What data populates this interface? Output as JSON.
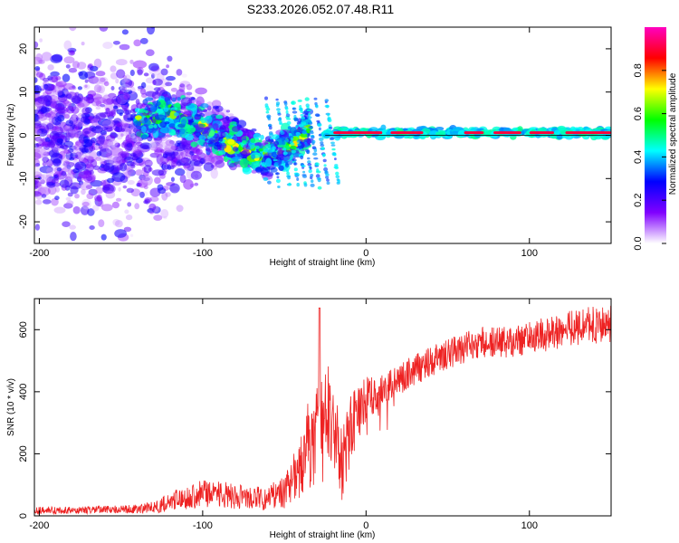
{
  "title": "S233.2026.052.07.48.R11",
  "chart_data": [
    {
      "type": "heatmap",
      "name": "spectrogram",
      "xlabel": "Height of straight line (km)",
      "ylabel": "Frequency (Hz)",
      "xlim": [
        -203,
        150
      ],
      "ylim": [
        -25,
        25
      ],
      "xticks": [
        -200,
        -100,
        0,
        100
      ],
      "yticks": [
        -20,
        -10,
        0,
        10,
        20
      ],
      "colorbar": {
        "label": "Normalized spectral amplitude",
        "range": [
          0,
          1
        ],
        "ticks": [
          "0.0",
          "0.2",
          "0.4",
          "0.6",
          "0.8"
        ],
        "tick_values": [
          0.0,
          0.2,
          0.4,
          0.6,
          0.8
        ],
        "colors": [
          "#ffffff",
          "#8000ff",
          "#0000ff",
          "#00ffff",
          "#00ff00",
          "#ffff00",
          "#ff0000",
          "#ff00c0"
        ]
      },
      "features": [
        {
          "name": "diffuse-noise",
          "x_range": [
            -203,
            -130
          ],
          "freq_range": [
            -25,
            25
          ],
          "level": 0.2
        },
        {
          "name": "descending-trace",
          "x": [
            -140,
            -120,
            -100,
            -80,
            -60,
            -45,
            -35
          ],
          "freq": [
            3,
            5,
            2,
            -3,
            -5,
            -2,
            2
          ],
          "level": 0.35
        },
        {
          "name": "carrier-line",
          "x_range": [
            -25,
            150
          ],
          "freq": 0.6,
          "level": 0.9
        }
      ]
    },
    {
      "type": "line",
      "name": "snr",
      "xlabel": "Height of straight line (km)",
      "ylabel": "SNR (10 * v/v)",
      "xlim": [
        -203,
        150
      ],
      "ylim": [
        0,
        700
      ],
      "xticks": [
        -200,
        -100,
        0,
        100
      ],
      "yticks": [
        0,
        200,
        400,
        600
      ],
      "color": "#ee2222",
      "series": [
        {
          "name": "SNR",
          "x": [
            -203,
            -180,
            -160,
            -140,
            -130,
            -120,
            -110,
            -100,
            -90,
            -80,
            -70,
            -60,
            -50,
            -40,
            -35,
            -30,
            -28,
            -25,
            -20,
            -15,
            -10,
            -5,
            0,
            5,
            10,
            15,
            20,
            30,
            40,
            50,
            60,
            70,
            80,
            90,
            100,
            110,
            120,
            130,
            140,
            150
          ],
          "base": [
            18,
            18,
            20,
            22,
            28,
            45,
            60,
            70,
            70,
            62,
            55,
            60,
            75,
            150,
            230,
            260,
            280,
            300,
            270,
            160,
            280,
            330,
            380,
            390,
            400,
            420,
            440,
            470,
            500,
            520,
            540,
            560,
            560,
            560,
            575,
            585,
            600,
            610,
            615,
            620
          ],
          "amp": [
            12,
            12,
            12,
            14,
            20,
            30,
            40,
            45,
            45,
            40,
            38,
            40,
            55,
            100,
            150,
            160,
            200,
            180,
            160,
            120,
            120,
            90,
            70,
            60,
            55,
            50,
            50,
            50,
            50,
            50,
            50,
            50,
            50,
            50,
            55,
            55,
            60,
            60,
            60,
            60
          ]
        }
      ]
    }
  ]
}
